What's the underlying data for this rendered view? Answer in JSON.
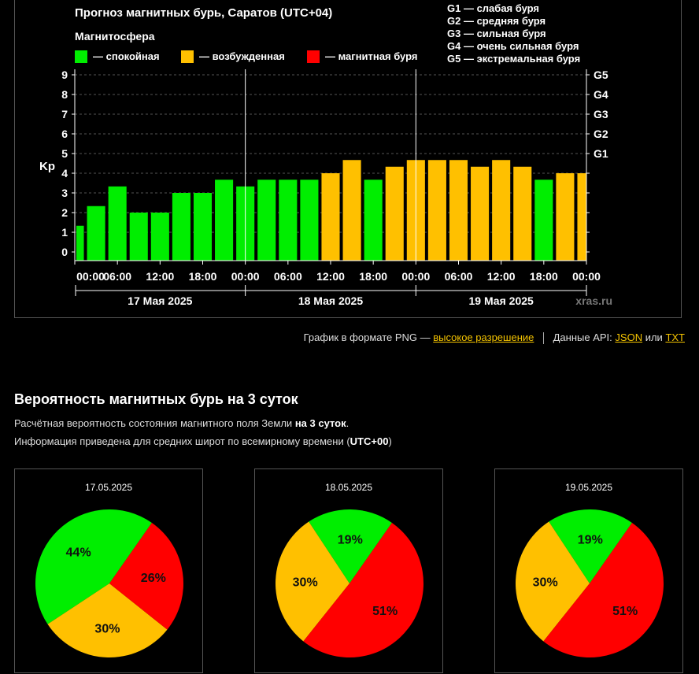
{
  "chart_data": [
    {
      "type": "bar",
      "title": "Прогноз магнитных бурь, Саратов (UTC+04)",
      "legend": {
        "title": "Магнитосфера",
        "items": [
          {
            "label": "— спокойная",
            "color": "#00ee00"
          },
          {
            "label": "— возбужденная",
            "color": "#ffc000"
          },
          {
            "label": "— магнитная буря",
            "color": "#ff0000"
          }
        ]
      },
      "storm_scale": [
        "G1 — слабая буря",
        "G2 — средняя буря",
        "G3 — сильная буря",
        "G4 — очень сильная буря",
        "G5 — экстремальная буря"
      ],
      "ylabel": "Kp",
      "ylim": [
        0,
        9
      ],
      "grid": true,
      "y_ticks": [
        "0",
        "1",
        "2",
        "3",
        "4",
        "5",
        "6",
        "7",
        "8",
        "9"
      ],
      "right_ticks": [
        "G1",
        "G2",
        "G3",
        "G4",
        "G5"
      ],
      "x_ticks": [
        "00:00",
        "06:00",
        "12:00",
        "18:00",
        "00:00",
        "06:00",
        "12:00",
        "18:00",
        "00:00",
        "06:00",
        "12:00",
        "18:00",
        "00:00"
      ],
      "days": [
        "17 Мая 2025",
        "18 Мая 2025",
        "19 Мая 2025"
      ],
      "values": [
        1.33,
        2.33,
        3.33,
        2.0,
        2.0,
        3.0,
        3.0,
        3.67,
        3.33,
        3.67,
        3.67,
        3.67,
        4.0,
        4.67,
        3.67,
        4.33,
        4.67,
        4.67,
        4.67,
        4.33,
        4.67,
        4.33,
        3.67,
        4.0,
        4.0
      ],
      "thresholds": {
        "quiet": 4,
        "storm": 5
      }
    },
    {
      "type": "pie",
      "date": "17.05.2025",
      "slices": [
        {
          "label": "44%",
          "value": 44,
          "color": "#00ee00"
        },
        {
          "label": "30%",
          "value": 30,
          "color": "#ffc000"
        },
        {
          "label": "26%",
          "value": 26,
          "color": "#ff0000"
        }
      ]
    },
    {
      "type": "pie",
      "date": "18.05.2025",
      "slices": [
        {
          "label": "19%",
          "value": 19,
          "color": "#00ee00"
        },
        {
          "label": "30%",
          "value": 30,
          "color": "#ffc000"
        },
        {
          "label": "51%",
          "value": 51,
          "color": "#ff0000"
        }
      ]
    },
    {
      "type": "pie",
      "date": "19.05.2025",
      "slices": [
        {
          "label": "19%",
          "value": 19,
          "color": "#00ee00"
        },
        {
          "label": "30%",
          "value": 30,
          "color": "#ffc000"
        },
        {
          "label": "51%",
          "value": 51,
          "color": "#ff0000"
        }
      ]
    }
  ],
  "watermark": "xras.ru",
  "links": {
    "png_text": "График в формате PNG —",
    "png_link": "высокое разрешение",
    "api_text": "Данные API:",
    "json_link": "JSON",
    "or_text": "или",
    "txt_link": "TXT"
  },
  "section": {
    "title": "Вероятность магнитных бурь на 3 суток",
    "desc1_pre": "Расчётная вероятность состояния магнитного поля Земли",
    "desc1_bold": "на 3 суток",
    "desc1_post": ".",
    "desc2_pre": "Информация приведена для средних широт по всемирному времени (",
    "desc2_bold": "UTC+00",
    "desc2_post": ")"
  }
}
